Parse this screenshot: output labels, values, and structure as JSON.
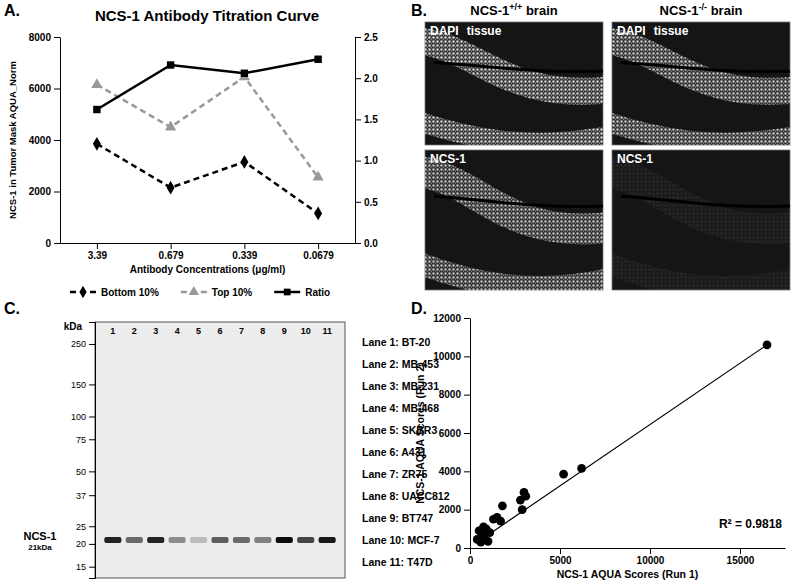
{
  "chart_data": [
    {
      "type": "line",
      "panel_label": "A.",
      "title": "NCS-1 Antibody Titration Curve",
      "x_label": "Antibody Concentrations (μg/ml)",
      "y_label": "NCS-1 in Tumor Mask AQUA_Norm",
      "categories": [
        "3.39",
        "0.679",
        "0.339",
        "0.0679"
      ],
      "series": [
        {
          "name": "Bottom 10%",
          "color": "#000000",
          "line_style": "dashed",
          "marker": "diamond",
          "values": [
            3850,
            2150,
            3150,
            1150
          ]
        },
        {
          "name": "Top 10%",
          "color": "#999999",
          "line_style": "dashed",
          "marker": "triangle",
          "values": [
            6150,
            4500,
            6450,
            2550
          ]
        },
        {
          "name": "Ratio",
          "color": "#000000",
          "line_style": "solid",
          "marker": "square",
          "axis": "y2",
          "values": [
            1.62,
            2.16,
            2.06,
            2.23
          ]
        }
      ],
      "ylim": [
        0,
        8000
      ],
      "yticks": [
        0,
        2000,
        4000,
        6000,
        8000
      ],
      "y2lim": [
        0,
        2.5
      ],
      "y2ticks": [
        {
          "value": 0,
          "label": "0.0"
        },
        0.5,
        {
          "value": 1,
          "label": "1.0"
        },
        1.5,
        {
          "value": 2,
          "label": "2.0"
        },
        2.5
      ],
      "legend": "bottom",
      "grid": false
    },
    {
      "type": "scatter",
      "panel_label": "D.",
      "x_label": "NCS-1 AQUA Scores (Run 1)",
      "y_label": "NCS-1 AQUA Scores (Run 2)",
      "x": [
        400,
        500,
        600,
        700,
        750,
        800,
        900,
        1000,
        1100,
        1300,
        1500,
        1700,
        1800,
        2800,
        2900,
        3000,
        3100,
        5200,
        6200,
        16500
      ],
      "values": [
        450,
        900,
        300,
        700,
        1100,
        500,
        1000,
        350,
        800,
        1500,
        1600,
        1400,
        2200,
        2500,
        2000,
        2900,
        2700,
        3850,
        4150,
        10600
      ],
      "color": "#000000",
      "marker": "circle",
      "trendline": {
        "x": [
          400,
          16500
        ],
        "values": [
          300,
          10600
        ]
      },
      "annotation": "R² = 0.9818",
      "xlim": [
        0,
        17500
      ],
      "xticks": [
        0,
        5000,
        10000,
        15000
      ],
      "ylim": [
        0,
        12000
      ],
      "yticks": [
        0,
        2000,
        4000,
        6000,
        8000,
        10000,
        12000
      ],
      "grid": false
    }
  ],
  "panel_b": {
    "panel_label": "B.",
    "columns": [
      {
        "prefix": "NCS-1",
        "superscript": "+/+",
        "suffix": "brain"
      },
      {
        "prefix": "NCS-1",
        "superscript": "-/-",
        "suffix": "brain"
      }
    ],
    "images": [
      {
        "labels": [
          "DAPI",
          "tissue"
        ]
      },
      {
        "labels": [
          "DAPI",
          "tissue"
        ]
      },
      {
        "labels": [
          "NCS-1"
        ]
      },
      {
        "labels": [
          "NCS-1"
        ]
      }
    ]
  },
  "panel_c": {
    "panel_label": "C.",
    "y_label": "kDa",
    "log": "y",
    "ylim": [
      13,
      330
    ],
    "yticks": [
      250,
      150,
      100,
      75,
      50,
      37,
      25,
      20,
      15
    ],
    "categories": [
      "1",
      "2",
      "3",
      "4",
      "5",
      "6",
      "7",
      "8",
      "9",
      "10",
      "11"
    ],
    "lane_labels": [
      "Lane 1: BT-20",
      "Lane 2: MB-453",
      "Lane 3: MB-231",
      "Lane 4: MB-468",
      "Lane 5: SKBR3",
      "Lane 6: A431",
      "Lane 7: ZR75",
      "Lane 8: UACC812",
      "Lane 9: BT747",
      "Lane 10: MCF-7",
      "Lane 11: T47D"
    ],
    "band": {
      "label": "NCS-1",
      "sublabel": "21kDa",
      "kda": 21,
      "intensity": [
        0.85,
        0.55,
        0.85,
        0.4,
        0.2,
        0.6,
        0.55,
        0.45,
        0.95,
        0.7,
        0.9
      ]
    }
  }
}
